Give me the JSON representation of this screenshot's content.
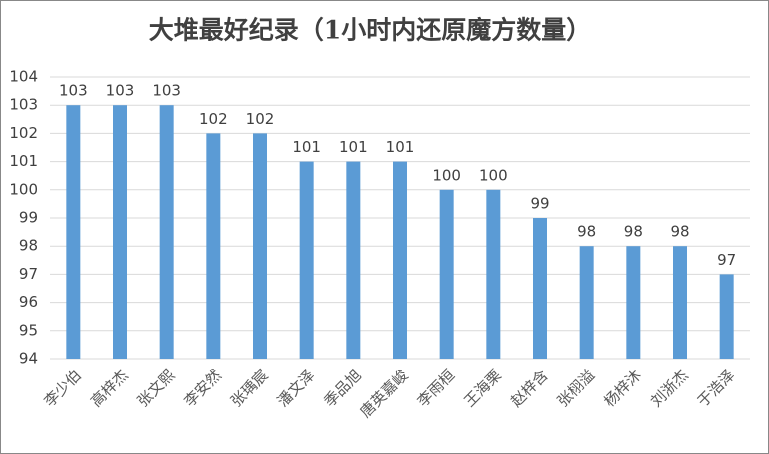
{
  "chart_data": {
    "type": "bar",
    "title": "大堆最好纪录（1小时内还原魔方数量）",
    "categories": [
      "李少伯",
      "高梓杰",
      "张文熙",
      "李安然",
      "张瑀宸",
      "潘文泽",
      "季品旭",
      "唐英嘉峻",
      "李雨桓",
      "王海栗",
      "赵梓含",
      "张栩溢",
      "杨梓沐",
      "刘浙杰",
      "于浩泽"
    ],
    "values": [
      103,
      103,
      103,
      102,
      102,
      101,
      101,
      101,
      100,
      100,
      99,
      98,
      98,
      98,
      97
    ],
    "color": "#5b9bd5",
    "ylim": [
      94,
      104
    ],
    "yticks": [
      94,
      95,
      96,
      97,
      98,
      99,
      100,
      101,
      102,
      103,
      104
    ],
    "grid": true
  }
}
